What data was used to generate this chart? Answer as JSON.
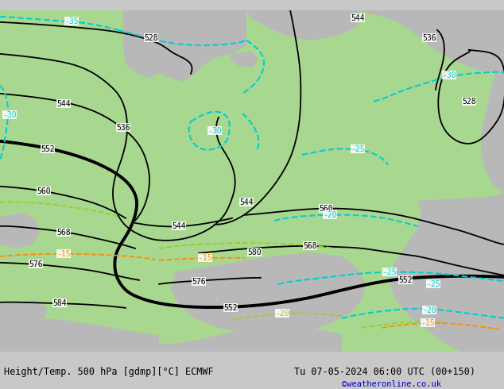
{
  "title_left": "Height/Temp. 500 hPa [gdmp][°C] ECMWF",
  "title_right": "Tu 07-05-2024 06:00 UTC (00+150)",
  "copyright": "©weatheronline.co.uk",
  "bg_color": "#c8c8c8",
  "green_color": "#a8d890",
  "gray_land_color": "#b8b8b8",
  "font_size_title": 8.5,
  "font_size_copyright": 7.5,
  "black": "#000000",
  "cyan": "#00CED1",
  "orange": "#FF8C00",
  "yellow_green": "#9ACD32"
}
